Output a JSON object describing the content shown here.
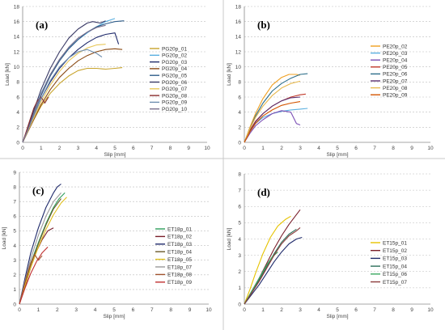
{
  "chart_data": [
    {
      "type": "line",
      "panel": "(a)",
      "xlabel": "Slip [mm]",
      "ylabel": "Load [kN]",
      "xlim": [
        0,
        10
      ],
      "ylim": [
        0,
        18
      ],
      "xticks": [
        0,
        1,
        2,
        3,
        4,
        5,
        6,
        7,
        8,
        9,
        10
      ],
      "yticks": [
        0,
        2,
        4,
        6,
        8,
        10,
        12,
        14,
        16,
        18
      ],
      "grid": "horizontal-dashed",
      "legend_position": "right",
      "series": [
        {
          "name": "PG20p_01",
          "color": "#c8a42c",
          "x": [
            0,
            0.3,
            0.6,
            1.0,
            1.5,
            2.0,
            2.5,
            3.0,
            3.5,
            4.0,
            4.5,
            5.0,
            5.4
          ],
          "y": [
            0,
            1.5,
            3.0,
            4.8,
            6.5,
            7.8,
            8.8,
            9.5,
            9.8,
            9.8,
            9.7,
            9.8,
            9.9
          ]
        },
        {
          "name": "PG20p_02",
          "color": "#5bb0e0",
          "x": [
            0,
            0.3,
            0.6,
            1.0,
            1.5,
            2.0,
            2.5,
            3.0,
            3.5,
            4.0,
            4.5,
            5.0
          ],
          "y": [
            0,
            2.0,
            4.0,
            6.5,
            9.0,
            11.0,
            12.5,
            13.6,
            14.5,
            15.3,
            16.0,
            16.4
          ]
        },
        {
          "name": "PG20p_03",
          "color": "#1f2a6b",
          "x": [
            0,
            0.3,
            0.6,
            1.0,
            1.5,
            2.0,
            2.5,
            3.0,
            3.5,
            4.0,
            4.5,
            5.0,
            5.2
          ],
          "y": [
            0,
            1.8,
            3.5,
            5.8,
            8.0,
            9.8,
            11.2,
            12.3,
            13.2,
            13.9,
            14.3,
            14.5,
            13.0
          ]
        },
        {
          "name": "PG20p_04",
          "color": "#8a4a14",
          "x": [
            0,
            0.3,
            0.6,
            1.0,
            1.5,
            2.0,
            2.5,
            3.0,
            3.5,
            4.0,
            4.5,
            5.0,
            5.4
          ],
          "y": [
            0,
            1.5,
            3.0,
            5.0,
            7.0,
            8.6,
            9.8,
            10.8,
            11.5,
            12.0,
            12.3,
            12.4,
            12.3
          ]
        },
        {
          "name": "PG20p_05",
          "color": "#2f5d8a",
          "x": [
            0,
            0.3,
            0.6,
            1.0,
            1.5,
            2.0,
            2.5,
            3.0,
            3.5,
            4.0,
            4.5,
            5.0,
            5.5
          ],
          "y": [
            0,
            1.8,
            3.8,
            6.2,
            8.8,
            10.8,
            12.4,
            13.6,
            14.6,
            15.3,
            15.7,
            16.0,
            16.1
          ]
        },
        {
          "name": "PG20p_06",
          "color": "#3a3a66",
          "x": [
            0,
            0.3,
            0.6,
            1.0,
            1.5,
            2.0,
            2.5,
            3.0,
            3.5,
            3.8,
            4.0,
            4.2,
            4.5
          ],
          "y": [
            0,
            2.0,
            4.2,
            7.0,
            9.8,
            12.0,
            13.8,
            15.0,
            15.8,
            16.0,
            15.9,
            15.8,
            16.1
          ]
        },
        {
          "name": "PG20p_07",
          "color": "#e8c85a",
          "x": [
            0,
            0.3,
            0.6,
            1.0,
            1.5,
            2.0,
            2.5,
            3.0,
            3.5,
            4.0,
            4.5
          ],
          "y": [
            0,
            1.6,
            3.2,
            5.4,
            7.6,
            9.4,
            10.8,
            11.8,
            12.5,
            12.9,
            13.0
          ]
        },
        {
          "name": "PG20p_08",
          "color": "#8b2e2e",
          "x": [
            0,
            0.2,
            0.4,
            0.6,
            0.8,
            1.0,
            1.2,
            1.4
          ],
          "y": [
            0,
            1.5,
            3.0,
            4.5,
            5.5,
            6.0,
            5.2,
            6.0
          ]
        },
        {
          "name": "PG20p_09",
          "color": "#6f8fb0",
          "x": [
            0,
            0.3,
            0.6,
            1.0,
            1.5,
            2.0,
            2.5,
            3.0,
            3.5,
            4.0,
            4.3
          ],
          "y": [
            0,
            1.7,
            3.5,
            5.8,
            8.2,
            10.0,
            11.2,
            12.0,
            12.3,
            11.8,
            11.3
          ]
        },
        {
          "name": "PG20p_10",
          "color": "#7a6f8c",
          "x": [
            0,
            0.3,
            0.6,
            1.0,
            1.5,
            2.0,
            2.5,
            3.0,
            3.5,
            4.0,
            4.5
          ],
          "y": [
            0,
            1.8,
            3.8,
            6.4,
            9.0,
            11.0,
            12.6,
            13.8,
            14.6,
            15.2,
            15.5
          ]
        }
      ]
    },
    {
      "type": "line",
      "panel": "(b)",
      "xlabel": "Slip [mm]",
      "ylabel": "Load [kN]",
      "xlim": [
        0,
        10
      ],
      "ylim": [
        0,
        18
      ],
      "xticks": [
        0,
        1,
        2,
        3,
        4,
        5,
        6,
        7,
        8,
        9,
        10
      ],
      "yticks": [
        0,
        2,
        4,
        6,
        8,
        10,
        12,
        14,
        16,
        18
      ],
      "grid": "horizontal-dashed",
      "legend_position": "right",
      "series": [
        {
          "name": "PE20p_02",
          "color": "#f0a020",
          "x": [
            0,
            0.3,
            0.6,
            1.0,
            1.5,
            2.0,
            2.4,
            2.8,
            3.0
          ],
          "y": [
            0,
            2.0,
            3.8,
            5.8,
            7.6,
            8.6,
            9.0,
            9.0,
            8.9
          ]
        },
        {
          "name": "PE20p_03",
          "color": "#5bb0e0",
          "x": [
            0,
            0.3,
            0.6,
            1.0,
            1.5,
            2.0,
            2.5,
            3.0,
            3.4
          ],
          "y": [
            0,
            1.5,
            2.5,
            3.3,
            3.8,
            4.1,
            4.3,
            4.4,
            4.5
          ]
        },
        {
          "name": "PE20p_04",
          "color": "#7b4fb5",
          "x": [
            0,
            0.3,
            0.6,
            1.0,
            1.5,
            2.0,
            2.5,
            2.8,
            3.0
          ],
          "y": [
            0,
            1.2,
            2.2,
            3.0,
            3.8,
            4.2,
            4.0,
            2.5,
            2.3
          ]
        },
        {
          "name": "PE20p_05",
          "color": "#c0392b",
          "x": [
            0,
            0.3,
            0.6,
            1.0,
            1.5,
            2.0,
            2.5,
            3.0,
            3.3
          ],
          "y": [
            0,
            1.6,
            2.8,
            3.8,
            4.8,
            5.5,
            6.0,
            6.3,
            6.4
          ]
        },
        {
          "name": "PE20p_06",
          "color": "#2c6e8a",
          "x": [
            0,
            0.3,
            0.6,
            1.0,
            1.5,
            2.0,
            2.5,
            3.0,
            3.4
          ],
          "y": [
            0,
            1.8,
            3.5,
            5.2,
            6.8,
            7.8,
            8.5,
            9.0,
            9.1
          ]
        },
        {
          "name": "PE20p_07",
          "color": "#5a2e6e",
          "x": [
            0,
            0.3,
            0.6,
            1.0,
            1.5,
            2.0,
            2.5,
            3.0
          ],
          "y": [
            0,
            1.5,
            2.7,
            3.8,
            4.8,
            5.5,
            5.9,
            6.0
          ]
        },
        {
          "name": "PE20p_08",
          "color": "#e6b84d",
          "x": [
            0,
            0.3,
            0.6,
            1.0,
            1.5,
            2.0,
            2.5,
            3.0
          ],
          "y": [
            0,
            1.8,
            3.3,
            4.8,
            6.2,
            7.2,
            7.8,
            8.1
          ]
        },
        {
          "name": "PE20p_09",
          "color": "#d35400",
          "x": [
            0,
            0.3,
            0.6,
            1.0,
            1.5,
            2.0,
            2.5,
            3.0
          ],
          "y": [
            0,
            1.4,
            2.5,
            3.5,
            4.3,
            4.9,
            5.2,
            5.4
          ]
        }
      ]
    },
    {
      "type": "line",
      "panel": "(c)",
      "xlabel": "Slip [mm]",
      "ylabel": "Load [kN]",
      "xlim": [
        0,
        10
      ],
      "ylim": [
        0,
        9
      ],
      "xticks": [
        0,
        1,
        2,
        3,
        4,
        5,
        6,
        7,
        8,
        9,
        10
      ],
      "yticks": [
        0,
        1,
        2,
        3,
        4,
        5,
        6,
        7,
        8,
        9
      ],
      "grid": "horizontal-dashed",
      "legend_position": "right",
      "series": [
        {
          "name": "ET18p_01",
          "color": "#2e9e5b",
          "x": [
            0,
            0.3,
            0.6,
            1.0,
            1.4,
            1.8,
            2.1,
            2.4
          ],
          "y": [
            0,
            1.5,
            2.8,
            4.2,
            5.5,
            6.6,
            7.2,
            7.6
          ]
        },
        {
          "name": "ET18p_02",
          "color": "#7a1f2b",
          "x": [
            0,
            0.3,
            0.6,
            0.9,
            1.2,
            1.5,
            1.8
          ],
          "y": [
            0,
            1.2,
            2.5,
            3.6,
            4.4,
            5.0,
            5.2
          ]
        },
        {
          "name": "ET18p_03",
          "color": "#1f2a6b",
          "x": [
            0,
            0.3,
            0.6,
            1.0,
            1.4,
            1.8,
            2.0,
            2.2
          ],
          "y": [
            0,
            1.8,
            3.5,
            5.2,
            6.6,
            7.6,
            8.0,
            8.2
          ]
        },
        {
          "name": "ET18p_04",
          "color": "#6b5a2a",
          "x": [
            0,
            0.3,
            0.6,
            1.0,
            1.4,
            1.8,
            2.2
          ],
          "y": [
            0,
            1.4,
            2.7,
            4.1,
            5.4,
            6.5,
            7.2
          ]
        },
        {
          "name": "ET18p_05",
          "color": "#e0c020",
          "x": [
            0,
            0.3,
            0.6,
            1.0,
            1.4,
            1.8,
            2.2,
            2.5
          ],
          "y": [
            0,
            1.3,
            2.5,
            3.9,
            5.1,
            6.1,
            6.9,
            7.3
          ]
        },
        {
          "name": "ET18p_07",
          "color": "#9a9a9a",
          "x": [
            0,
            0.3,
            0.6,
            1.0,
            1.4,
            1.8,
            2.2
          ],
          "y": [
            0,
            1.6,
            3.1,
            4.7,
            6.0,
            7.0,
            7.6
          ]
        },
        {
          "name": "ET18p_08",
          "color": "#a0522d",
          "x": [
            0,
            0.2,
            0.4,
            0.6,
            0.8,
            1.0,
            1.2
          ],
          "y": [
            0,
            1.0,
            2.0,
            2.8,
            3.4,
            3.0,
            3.3
          ]
        },
        {
          "name": "ET18p_09",
          "color": "#c03030",
          "x": [
            0,
            0.3,
            0.6,
            0.9,
            1.2,
            1.5
          ],
          "y": [
            0,
            1.1,
            2.1,
            2.9,
            3.5,
            3.9
          ]
        }
      ]
    },
    {
      "type": "line",
      "panel": "(d)",
      "xlabel": "Slip [mm]",
      "ylabel": "Load [kN]",
      "xlim": [
        0,
        10
      ],
      "ylim": [
        0,
        8
      ],
      "xticks": [
        0,
        1,
        2,
        3,
        4,
        5,
        6,
        7,
        8,
        9,
        10
      ],
      "yticks": [
        0,
        1,
        2,
        3,
        4,
        5,
        6,
        7,
        8
      ],
      "grid": "horizontal-dashed",
      "legend_position": "right",
      "series": [
        {
          "name": "ET15p_01",
          "color": "#e6c300",
          "x": [
            0,
            0.3,
            0.6,
            1.0,
            1.4,
            1.8,
            2.2,
            2.5
          ],
          "y": [
            0,
            0.9,
            1.9,
            3.1,
            4.1,
            4.8,
            5.2,
            5.4
          ]
        },
        {
          "name": "ET15p_02",
          "color": "#7a1f2b",
          "x": [
            0,
            0.4,
            0.8,
            1.2,
            1.6,
            2.0,
            2.4,
            2.8,
            3.0
          ],
          "y": [
            0,
            0.8,
            1.6,
            2.5,
            3.4,
            4.2,
            4.9,
            5.5,
            5.8
          ]
        },
        {
          "name": "ET15p_03",
          "color": "#1f2a6b",
          "x": [
            0,
            0.4,
            0.8,
            1.2,
            1.6,
            2.0,
            2.4,
            2.8,
            3.1
          ],
          "y": [
            0,
            0.6,
            1.2,
            1.9,
            2.6,
            3.2,
            3.7,
            4.0,
            4.1
          ]
        },
        {
          "name": "ET15p_04",
          "color": "#2c6e5a",
          "x": [
            0,
            0.4,
            0.8,
            1.2,
            1.6,
            2.0,
            2.4,
            2.8
          ],
          "y": [
            0,
            0.7,
            1.5,
            2.3,
            3.1,
            3.8,
            4.3,
            4.6
          ]
        },
        {
          "name": "ET15p_06",
          "color": "#3aa860",
          "x": [
            0,
            0.3,
            0.6,
            0.9,
            1.2,
            1.5,
            1.8
          ],
          "y": [
            0,
            0.6,
            1.2,
            1.8,
            2.4,
            2.9,
            3.2
          ]
        },
        {
          "name": "ET15p_07",
          "color": "#8b3a3a",
          "x": [
            0,
            0.4,
            0.8,
            1.2,
            1.6,
            2.0,
            2.4,
            2.8,
            3.0
          ],
          "y": [
            0,
            0.7,
            1.4,
            2.2,
            3.0,
            3.7,
            4.2,
            4.5,
            4.7
          ]
        }
      ]
    }
  ]
}
